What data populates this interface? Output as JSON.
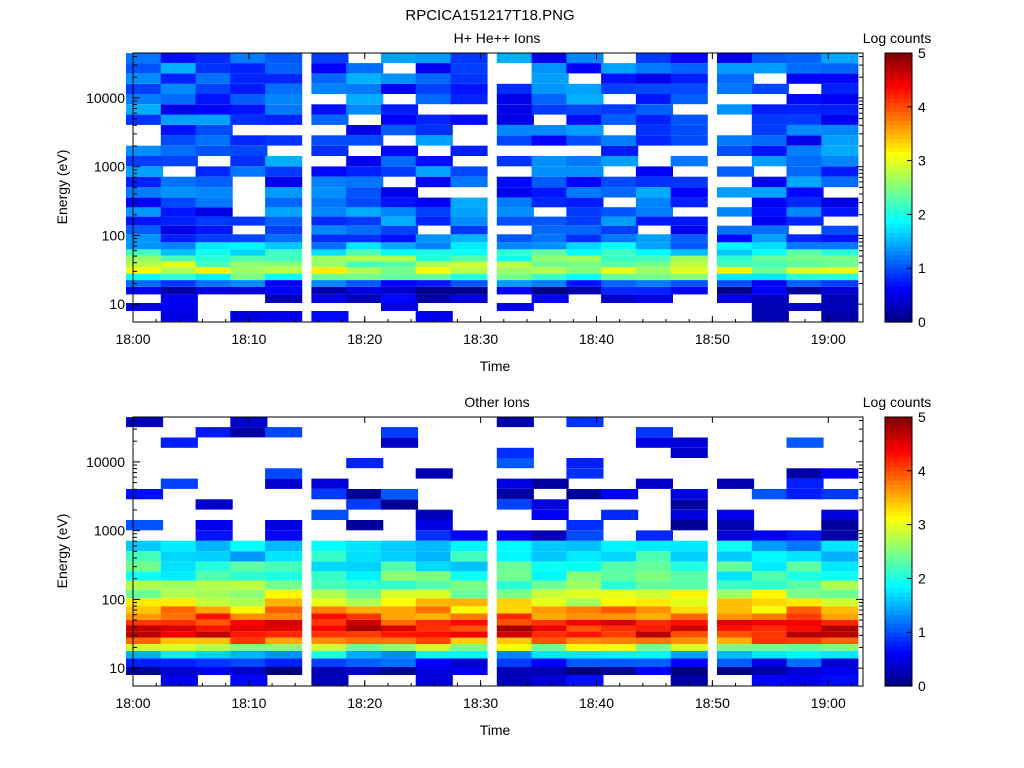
{
  "figure": {
    "title": "RPCICA151217T18.PNG"
  },
  "colormap": [
    "#00007f",
    "#0000ff",
    "#007fff",
    "#00ffff",
    "#7fff7f",
    "#ffff00",
    "#ff7f00",
    "#ff0000",
    "#7f0000"
  ],
  "chart_data": [
    {
      "type": "heatmap",
      "title": "H+ He++ Ions",
      "xlabel": "Time",
      "ylabel": "Energy (eV)",
      "yscale": "log",
      "xlim": [
        "18:00",
        "19:03"
      ],
      "ylim": [
        5.5,
        45000
      ],
      "x_ticks": [
        "18:00",
        "18:10",
        "18:20",
        "18:30",
        "18:40",
        "18:50",
        "19:00"
      ],
      "y_ticks": [
        "10",
        "100",
        "1000",
        "10000"
      ],
      "colorbar": {
        "label": "Log counts",
        "range": [
          0,
          5
        ],
        "ticks": [
          "0",
          "1",
          "2",
          "3",
          "4",
          "5"
        ]
      },
      "time_bins": [
        "18:01",
        "18:04",
        "18:07",
        "18:10",
        "18:13",
        "18:17",
        "18:20",
        "18:23",
        "18:26",
        "18:29",
        "18:33",
        "18:36",
        "18:39",
        "18:42",
        "18:45",
        "18:48",
        "18:52",
        "18:55",
        "18:58",
        "19:01"
      ],
      "energy_bins_ev": [
        7,
        9,
        12,
        16,
        20,
        25,
        31,
        38,
        46,
        56,
        70,
        90,
        120,
        160,
        220,
        300,
        420,
        600,
        850,
        1200,
        1700,
        2400,
        3400,
        4800,
        6800,
        9600,
        13500,
        19000,
        27000,
        38000
      ],
      "low_energy_profile": [
        -1,
        -1,
        -1,
        0.4,
        1.0,
        2.2,
        2.8,
        2.6,
        2.3,
        2.0,
        1.5,
        1.1
      ],
      "high_energy_level": 1.0
    },
    {
      "type": "heatmap",
      "title": "Other Ions",
      "xlabel": "Time",
      "ylabel": "Energy (eV)",
      "yscale": "log",
      "xlim": [
        "18:00",
        "19:03"
      ],
      "ylim": [
        5.5,
        45000
      ],
      "x_ticks": [
        "18:00",
        "18:10",
        "18:20",
        "18:30",
        "18:40",
        "18:50",
        "19:00"
      ],
      "y_ticks": [
        "10",
        "100",
        "1000",
        "10000"
      ],
      "colorbar": {
        "label": "Log counts",
        "range": [
          0,
          5
        ],
        "ticks": [
          "0",
          "1",
          "2",
          "3",
          "4",
          "5"
        ]
      },
      "time_bins": [
        "18:01",
        "18:04",
        "18:07",
        "18:10",
        "18:13",
        "18:17",
        "18:20",
        "18:23",
        "18:26",
        "18:29",
        "18:33",
        "18:36",
        "18:39",
        "18:42",
        "18:45",
        "18:48",
        "18:52",
        "18:55",
        "18:58",
        "19:01"
      ],
      "energy_bins_ev": [
        7,
        9,
        12,
        16,
        20,
        25,
        31,
        38,
        46,
        56,
        70,
        90,
        120,
        160,
        220,
        300,
        420,
        600,
        850,
        1200,
        1700,
        2400,
        3400,
        4800,
        6800,
        9600,
        13500,
        19000,
        27000,
        38000
      ],
      "low_energy_profile": [
        -1,
        0.3,
        0.8,
        1.6,
        2.8,
        3.8,
        4.3,
        4.4,
        4.2,
        3.9,
        3.5,
        3.1,
        2.8,
        2.5,
        2.2,
        2.0,
        1.8,
        1.5
      ],
      "high_energy_level": 0.6
    }
  ]
}
